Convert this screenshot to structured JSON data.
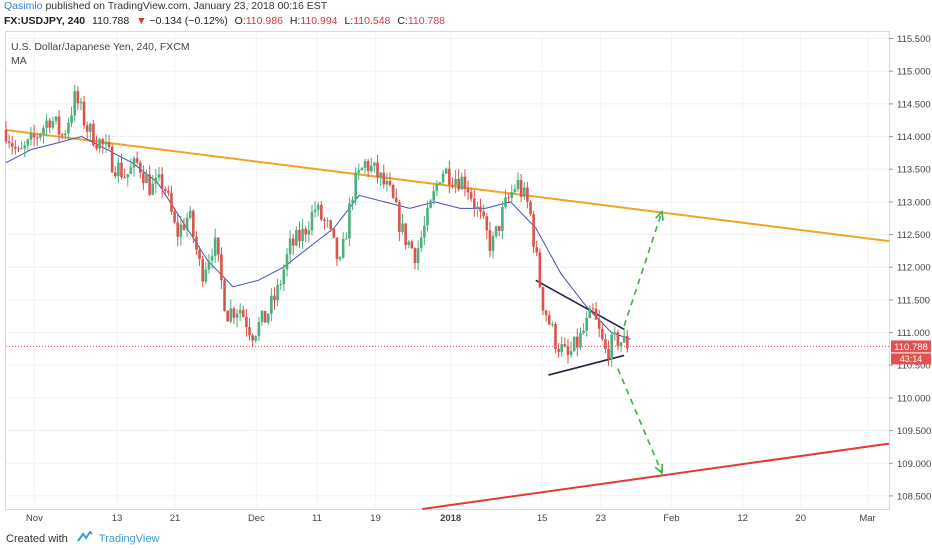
{
  "header": {
    "author": "Qasimlo",
    "published_text": "published on TradingView.com, January 23, 2018 00:16 EST"
  },
  "ohlc_line": {
    "symbol": "FX:USDJPY, 240",
    "last": "110.788",
    "change_icon": "triangle-down-icon",
    "change": "−0.134 (−0.12%)",
    "o_label": "O:",
    "o_value": "110.986",
    "h_label": "H:",
    "h_value": "110.994",
    "l_label": "L:",
    "l_value": "110.548",
    "c_label": "C:",
    "c_value": "110.788"
  },
  "legend": {
    "title": "U.S. Dollar/Japanese Yen, 240, FXCM",
    "indicator": "MA"
  },
  "footer": {
    "created_with": "Created with",
    "brand": "TradingView",
    "logo_icon": "tradingview-logo-icon"
  },
  "colors": {
    "up_candle": "#4caf7d",
    "down_candle": "#d9534f",
    "ma_line": "#3f51b5",
    "trend_orange": "#f4a323",
    "trend_red": "#e53935",
    "wedge": "#222244",
    "arrow": "#3cb043",
    "price_tag": "#e35050"
  },
  "chart_data": {
    "type": "candlestick",
    "ylim": [
      108.3,
      115.6
    ],
    "y_ticks": [
      "115.500",
      "115.000",
      "114.500",
      "114.000",
      "113.500",
      "113.000",
      "112.500",
      "112.000",
      "111.500",
      "111.000",
      "110.500",
      "110.000",
      "109.500",
      "109.000",
      "108.500"
    ],
    "x_ticks": [
      "Nov",
      "13",
      "21",
      "Dec",
      "11",
      "19",
      "2018",
      "15",
      "23",
      "Feb",
      "12",
      "20",
      "Mar"
    ],
    "price_label": "110.788",
    "secondary_label": "43:14",
    "current_price": 110.788,
    "close_path": [
      [
        0,
        114.1
      ],
      [
        2,
        113.7
      ],
      [
        4,
        113.9
      ],
      [
        7,
        114.3
      ],
      [
        9,
        114.0
      ],
      [
        11,
        114.6
      ],
      [
        13,
        114.1
      ],
      [
        15,
        113.9
      ],
      [
        17,
        113.6
      ],
      [
        19,
        113.4
      ],
      [
        21,
        113.6
      ],
      [
        23,
        113.2
      ],
      [
        25,
        113.3
      ],
      [
        27,
        112.5
      ],
      [
        29,
        112.8
      ],
      [
        31,
        111.9
      ],
      [
        33,
        112.4
      ],
      [
        35,
        111.3
      ],
      [
        37,
        111.4
      ],
      [
        39,
        111.0
      ],
      [
        41,
        111.2
      ],
      [
        43,
        111.6
      ],
      [
        45,
        112.3
      ],
      [
        47,
        112.5
      ],
      [
        49,
        112.9
      ],
      [
        51,
        112.6
      ],
      [
        53,
        112.0
      ],
      [
        55,
        113.2
      ],
      [
        57,
        113.6
      ],
      [
        59,
        113.4
      ],
      [
        61,
        113.1
      ],
      [
        63,
        112.5
      ],
      [
        65,
        112.2
      ],
      [
        67,
        112.8
      ],
      [
        69,
        113.5
      ],
      [
        71,
        113.4
      ],
      [
        73,
        113.3
      ],
      [
        75,
        112.8
      ],
      [
        77,
        112.3
      ],
      [
        79,
        112.9
      ],
      [
        81,
        113.3
      ],
      [
        83,
        112.9
      ],
      [
        85,
        111.5
      ],
      [
        87,
        110.9
      ],
      [
        89,
        110.6
      ],
      [
        91,
        110.9
      ],
      [
        93,
        111.3
      ],
      [
        95,
        110.7
      ],
      [
        97,
        110.9
      ],
      [
        99,
        110.8
      ]
    ],
    "ma_path": [
      [
        0,
        113.6
      ],
      [
        4,
        113.8
      ],
      [
        8,
        113.9
      ],
      [
        12,
        114.0
      ],
      [
        16,
        113.8
      ],
      [
        20,
        113.6
      ],
      [
        24,
        113.3
      ],
      [
        28,
        112.7
      ],
      [
        32,
        112.1
      ],
      [
        36,
        111.7
      ],
      [
        40,
        111.8
      ],
      [
        44,
        112.0
      ],
      [
        48,
        112.3
      ],
      [
        52,
        112.6
      ],
      [
        56,
        113.1
      ],
      [
        60,
        113.0
      ],
      [
        64,
        112.9
      ],
      [
        68,
        113.0
      ],
      [
        72,
        112.9
      ],
      [
        76,
        112.9
      ],
      [
        80,
        113.0
      ],
      [
        84,
        112.6
      ],
      [
        88,
        111.9
      ],
      [
        92,
        111.4
      ],
      [
        96,
        111.0
      ],
      [
        99,
        110.9
      ]
    ],
    "annotations": [
      {
        "kind": "trendline",
        "name": "orange-resistance-line",
        "color_key": "trend_orange",
        "from": [
          0,
          114.1
        ],
        "to": [
          140,
          112.4
        ]
      },
      {
        "kind": "trendline",
        "name": "red-support-line",
        "color_key": "trend_red",
        "from": [
          66,
          108.3
        ],
        "to": [
          140,
          109.3
        ]
      },
      {
        "kind": "trendline",
        "name": "wedge-upper-line",
        "color_key": "wedge",
        "from": [
          84,
          111.8
        ],
        "to": [
          98,
          111.05
        ]
      },
      {
        "kind": "trendline",
        "name": "wedge-lower-line",
        "color_key": "wedge",
        "from": [
          86,
          110.35
        ],
        "to": [
          98,
          110.65
        ]
      },
      {
        "kind": "arrow",
        "name": "arrow-up-scenario",
        "color_key": "arrow",
        "from": [
          98,
          111.1
        ],
        "to": [
          104,
          112.85
        ]
      },
      {
        "kind": "arrow",
        "name": "arrow-down-scenario",
        "color_key": "arrow",
        "from": [
          97,
          110.45
        ],
        "to": [
          104,
          108.85
        ]
      }
    ]
  }
}
